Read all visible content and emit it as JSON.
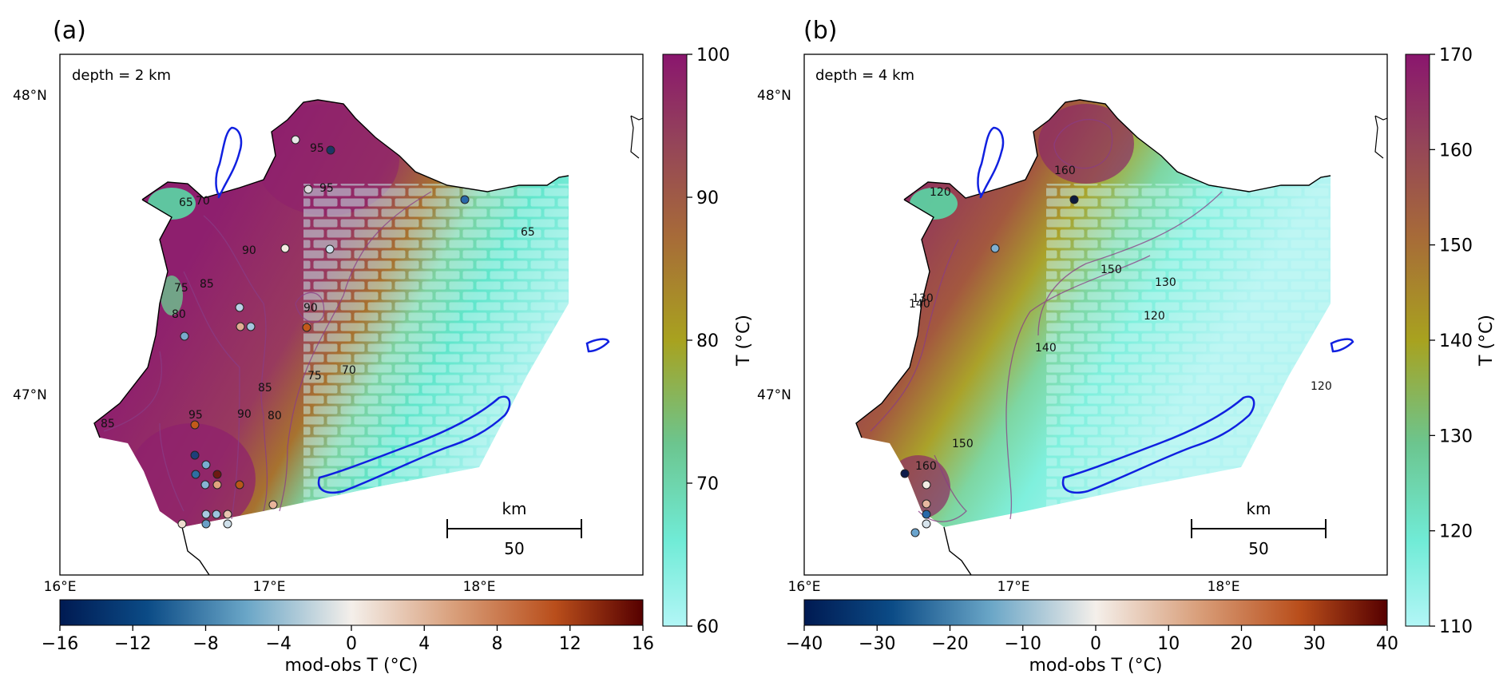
{
  "panels": [
    {
      "label": "(a)",
      "depth_text": "depth = 2 km",
      "lat_labels": [
        "48°N",
        "47°N"
      ],
      "lon_labels": [
        "16°E",
        "17°E",
        "18°E"
      ],
      "scale": {
        "unit": "km",
        "value": "50"
      },
      "temp_colorbar": {
        "ticks": [
          "60",
          "70",
          "80",
          "90",
          "100"
        ],
        "label": "T (°C)",
        "range": [
          60,
          100
        ]
      },
      "diff_colorbar": {
        "ticks": [
          "−16",
          "−12",
          "−8",
          "−4",
          "0",
          "4",
          "8",
          "12",
          "16"
        ],
        "label": "mod-obs T (°C)",
        "range": [
          -16,
          16
        ]
      },
      "contour_labels": [
        "95",
        "95",
        "65",
        "70",
        "65",
        "90",
        "85",
        "75",
        "80",
        "90",
        "75",
        "70",
        "85",
        "80",
        "90",
        "95",
        "85"
      ]
    },
    {
      "label": "(b)",
      "depth_text": "depth = 4 km",
      "lat_labels": [
        "48°N",
        "47°N"
      ],
      "lon_labels": [
        "16°E",
        "17°E",
        "18°E"
      ],
      "scale": {
        "unit": "km",
        "value": "50"
      },
      "temp_colorbar": {
        "ticks": [
          "110",
          "120",
          "130",
          "140",
          "150",
          "160",
          "170"
        ],
        "label": "T (°C)",
        "range": [
          110,
          170
        ]
      },
      "diff_colorbar": {
        "ticks": [
          "−40",
          "−30",
          "−20",
          "−10",
          "0",
          "10",
          "20",
          "30",
          "40"
        ],
        "label": "mod-obs T (°C)",
        "range": [
          -40,
          40
        ]
      },
      "contour_labels": [
        "160",
        "120",
        "150",
        "130",
        "120",
        "140",
        "130",
        "140",
        "150",
        "120",
        "160"
      ]
    }
  ],
  "colors": {
    "hot": "#8e1f6e",
    "mid": "#a36a3a",
    "olive": "#a5a22a",
    "cool": "#58e6c8",
    "cold": "#b0f4f0",
    "lake": "#1020e0"
  }
}
